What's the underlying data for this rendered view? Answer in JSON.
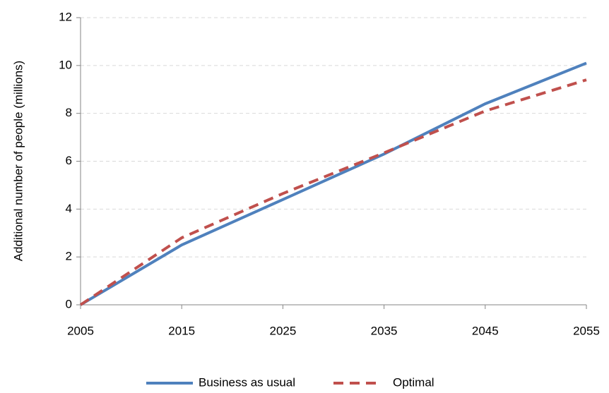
{
  "chart_data": {
    "type": "line",
    "y_label": "Additional number of people (millions)",
    "x": [
      2005,
      2015,
      2025,
      2035,
      2045,
      2055
    ],
    "series": [
      {
        "name": "Business as usual",
        "color": "#4f81bd",
        "dash": false,
        "values": [
          0,
          2.5,
          4.4,
          6.3,
          8.4,
          10.1
        ]
      },
      {
        "name": "Optimal",
        "color": "#c0504d",
        "dash": true,
        "values": [
          0,
          2.8,
          4.65,
          6.35,
          8.1,
          9.4
        ]
      }
    ],
    "xlim": [
      2005,
      2055
    ],
    "xticks": [
      2005,
      2015,
      2025,
      2035,
      2045,
      2055
    ],
    "ylim": [
      0,
      12
    ],
    "yticks": [
      0,
      2,
      4,
      6,
      8,
      10,
      12
    ],
    "grid": true,
    "legend": "bottom"
  }
}
